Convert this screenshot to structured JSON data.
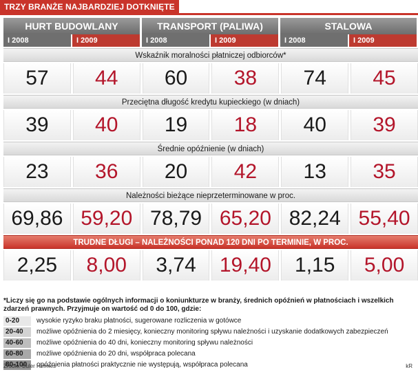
{
  "title": "TRZY BRANŻE NAJBARDZIEJ DOTKNIĘTE KRYZYSEM",
  "chart_data": {
    "type": "table",
    "title": "TRZY BRANŻE NAJBARDZIEJ DOTKNIĘTE KRYZYSEM",
    "sectors": [
      "HURT BUDOWLANY",
      "TRANSPORT (PALIWA)",
      "STALOWA"
    ],
    "periods": [
      "I 2008",
      "I 2009"
    ],
    "metrics": [
      {
        "label": "Wskaźnik moralności płatniczej odbiorców*",
        "special": false,
        "values": [
          "57",
          "44",
          "60",
          "38",
          "74",
          "45"
        ]
      },
      {
        "label": "Przeciętna długość kredytu kupieckiego (w dniach)",
        "special": false,
        "values": [
          "39",
          "40",
          "19",
          "18",
          "40",
          "39"
        ]
      },
      {
        "label": "Średnie opóźnienie (w dniach)",
        "special": false,
        "values": [
          "23",
          "36",
          "20",
          "42",
          "13",
          "35"
        ]
      },
      {
        "label": "Należności bieżące nieprzeterminowane w proc.",
        "special": false,
        "values": [
          "69,86",
          "59,20",
          "78,79",
          "65,20",
          "82,24",
          "55,40"
        ]
      },
      {
        "label": "TRUDNE DŁUGI – NALEŻNOŚCI PONAD 120 DNI PO TERMINIE, W PROC.",
        "special": true,
        "values": [
          "2,25",
          "8,00",
          "3,74",
          "19,40",
          "1,15",
          "5,00"
        ]
      }
    ]
  },
  "notes": {
    "footnote": "*Liczy się go na podstawie ogólnych informacji o koniunkturze w branży, średnich opóźnień w płatnościach i wszelkich zdarzeń prawnych. Przyjmuje on wartość od 0 do 100, gdzie:",
    "legend": [
      {
        "range": "0-20",
        "text": "wysokie ryzyko braku płatności, sugerowane rozliczenia w gotówce"
      },
      {
        "range": "20-40",
        "text": "możliwe opóźnienia do 2 miesięcy, konieczny monitoring spływu należności i uzyskanie dodatkowych zabezpieczeń"
      },
      {
        "range": "40-60",
        "text": "możliwe opóźnienia do 40 dni, konieczny monitoring spływu należności"
      },
      {
        "range": "60-80",
        "text": "możliwe opóźnienia do 20 dni, współpraca polecana"
      },
      {
        "range": "80-100",
        "text": "opóźnienia płatności praktycznie nie występują, współpraca polecana"
      }
    ]
  },
  "source": "Źródło: Euler Hermes",
  "credit": "kR"
}
